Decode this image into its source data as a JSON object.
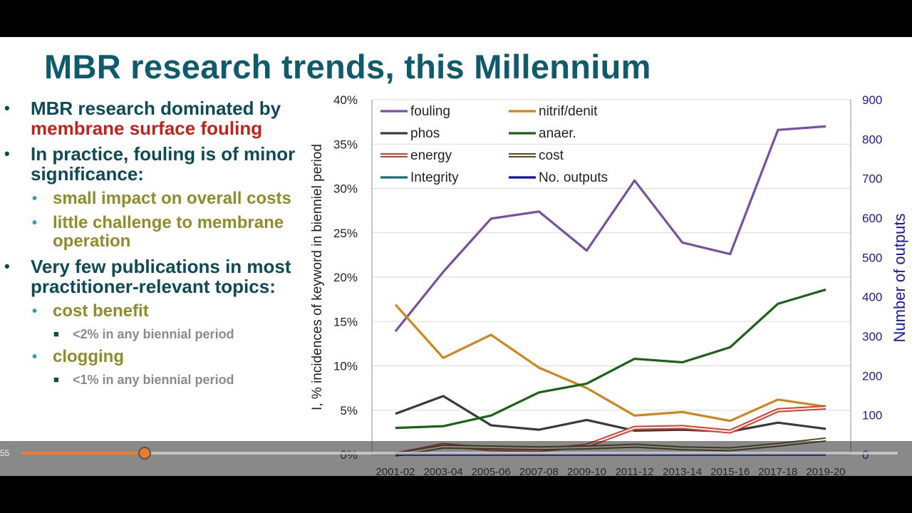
{
  "slide": {
    "title": "MBR research trends, this Millennium",
    "bullets": [
      {
        "parts": [
          {
            "t": "MBR research dominated by "
          },
          {
            "t": "membrane surface fouling",
            "red": true
          }
        ]
      },
      {
        "t": "In practice, fouling is of minor significance:"
      },
      {
        "t": "small impact on overall costs"
      },
      {
        "t": "little challenge to membrane operation"
      },
      {
        "t": "Very few publications in most practitioner-relevant topics:"
      },
      {
        "t": "cost benefit"
      },
      {
        "t": "<2% in any biennial period"
      },
      {
        "t": "clogging"
      },
      {
        "t": "<1% in any biennial period"
      }
    ]
  },
  "player": {
    "time_label": "55",
    "progress_fraction": 0.139
  },
  "chart_data": {
    "type": "line",
    "categories": [
      "2001-02",
      "2003-04",
      "2005-06",
      "2007-08",
      "2009-10",
      "2011-12",
      "2013-14",
      "2015-16",
      "2017-18",
      "2019-20"
    ],
    "ylabel": "I, % incidences of keyword in bienniel period",
    "y2label": "Number of outputs",
    "ylim": [
      0,
      40
    ],
    "yticks": [
      "0%",
      "5%",
      "10%",
      "15%",
      "20%",
      "25%",
      "30%",
      "35%",
      "40%"
    ],
    "y2lim": [
      0,
      900
    ],
    "y2ticks": [
      "0",
      "100",
      "200",
      "300",
      "400",
      "500",
      "600",
      "700",
      "800",
      "900"
    ],
    "grid": true,
    "legend_position": "top",
    "series": [
      {
        "name": "fouling",
        "color": "#7b4fa0",
        "style": "solid",
        "values": [
          13.9,
          20.6,
          26.6,
          27.4,
          23.0,
          30.9,
          23.9,
          22.6,
          36.6,
          37.0
        ]
      },
      {
        "name": "nitrif/denit",
        "color": "#cf8520",
        "style": "solid",
        "values": [
          16.9,
          10.9,
          13.5,
          9.8,
          7.5,
          4.4,
          4.8,
          3.8,
          6.2,
          5.4
        ]
      },
      {
        "name": "phos",
        "color": "#3a3a3a",
        "style": "solid",
        "values": [
          4.6,
          6.6,
          3.3,
          2.8,
          3.9,
          2.7,
          2.8,
          2.6,
          3.6,
          2.9
        ]
      },
      {
        "name": "anaer.",
        "color": "#1a6218",
        "style": "solid",
        "values": [
          3.0,
          3.2,
          4.4,
          7.0,
          8.0,
          10.8,
          10.4,
          12.1,
          17.0,
          18.6
        ]
      },
      {
        "name": "energy",
        "color": "#e03a2a",
        "style": "hollow",
        "values": [
          0.0,
          1.1,
          0.6,
          0.5,
          1.0,
          3.0,
          3.1,
          2.6,
          5.0,
          5.3
        ]
      },
      {
        "name": "cost",
        "color": "#5c4a1c",
        "style": "hollow",
        "values": [
          0.0,
          0.9,
          0.8,
          0.7,
          0.8,
          1.0,
          0.7,
          0.6,
          1.1,
          1.7
        ]
      },
      {
        "name": "Integrity",
        "color": "#0f6f7a",
        "style": "solid",
        "values": [
          0.0,
          0.0,
          0.0,
          0.0,
          0.0,
          0.0,
          0.0,
          0.0,
          0.0,
          0.0
        ]
      },
      {
        "name": "No. outputs",
        "color": "#1010b0",
        "style": "solid",
        "axis": "right",
        "values": [
          0,
          0,
          0,
          0,
          0,
          0,
          0,
          0,
          0,
          0
        ]
      }
    ]
  }
}
